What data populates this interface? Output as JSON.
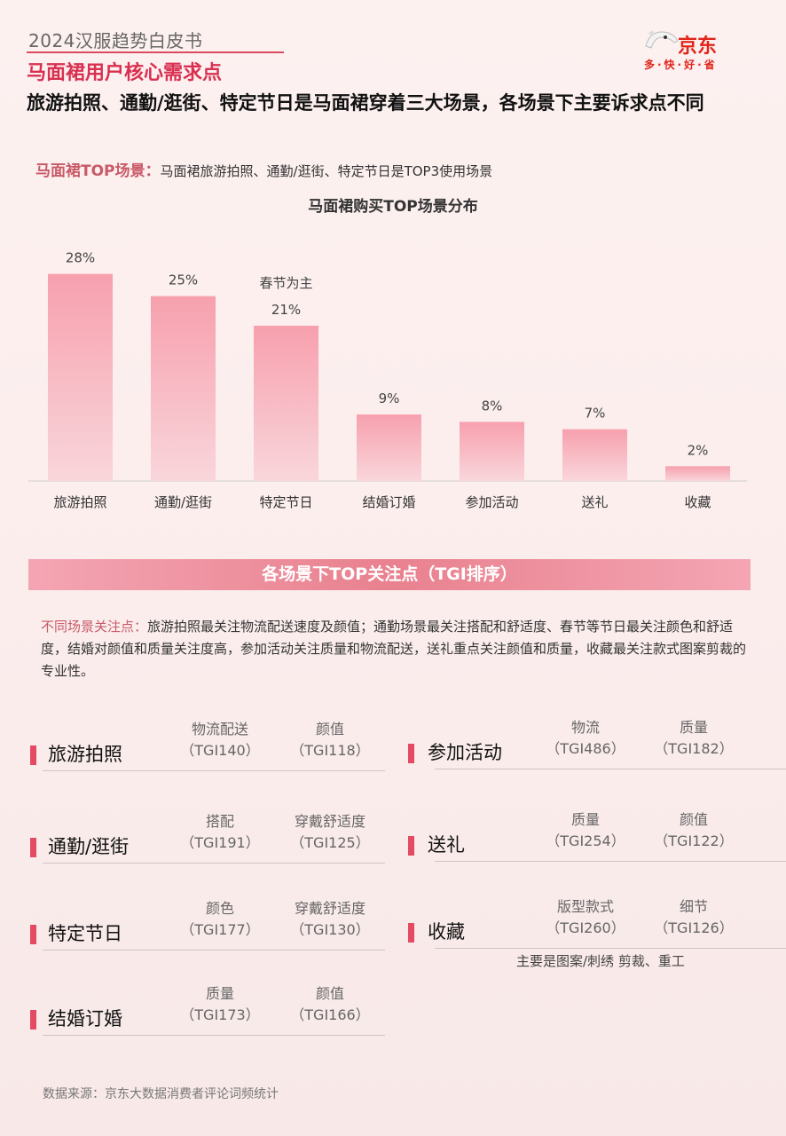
{
  "header": {
    "report_title": "2024汉服趋势白皮书",
    "section_title": "马面裙用户核心需求点",
    "subtitle": "旅游拍照、通勤/逛街、特定节日是马面裙穿着三大场景，各场景下主要诉求点不同",
    "logo": {
      "brand": "京东",
      "slogan": "多·快·好·省",
      "icon": "jd-dog-icon"
    }
  },
  "top_scene": {
    "label": "马面裙TOP场景：",
    "text": "马面裙旅游拍照、通勤/逛街、特定节日是TOP3使用场景"
  },
  "chart_data": {
    "type": "bar",
    "title": "马面裙购买TOP场景分布",
    "categories": [
      "旅游拍照",
      "通勤/逛街",
      "特定节日",
      "结婚订婚",
      "参加活动",
      "送礼",
      "收藏"
    ],
    "values": [
      28,
      25,
      21,
      9,
      8,
      7,
      2
    ],
    "value_labels": [
      "28%",
      "25%",
      "21%",
      "9%",
      "8%",
      "7%",
      "2%"
    ],
    "annotation": "春节为主",
    "ylim": [
      0,
      30
    ],
    "grid": false,
    "bar_color": "#f08c9c"
  },
  "focus": {
    "banner": "各场景下TOP关注点（TGI排序）",
    "desc_label": "不同场景关注点：",
    "desc_text": "旅游拍照最关注物流配送速度及颜值；通勤场景最关注搭配和舒适度、春节等节日最关注颜色和舒适度，结婚对颜值和质量关注度高，参加活动关注质量和物流配送，送礼重点关注颜值和质量，收藏最关注款式图案剪裁的专业性。",
    "scenes_left": [
      {
        "name": "旅游拍照",
        "tags": [
          {
            "name": "物流配送",
            "tgi": "（TGI140）"
          },
          {
            "name": "颜值",
            "tgi": "（TGI118）"
          }
        ]
      },
      {
        "name": "通勤/逛街",
        "tags": [
          {
            "name": "搭配",
            "tgi": "（TGI191）"
          },
          {
            "name": "穿戴舒适度",
            "tgi": "（TGI125）"
          }
        ]
      },
      {
        "name": "特定节日",
        "tags": [
          {
            "name": "颜色",
            "tgi": "（TGI177）"
          },
          {
            "name": "穿戴舒适度",
            "tgi": "（TGI130）"
          }
        ]
      },
      {
        "name": "结婚订婚",
        "tags": [
          {
            "name": "质量",
            "tgi": "（TGI173）"
          },
          {
            "name": "颜值",
            "tgi": "（TGI166）"
          }
        ]
      }
    ],
    "scenes_right": [
      {
        "name": "参加活动",
        "tags": [
          {
            "name": "物流",
            "tgi": "（TGI486）"
          },
          {
            "name": "质量",
            "tgi": "（TGI182）"
          }
        ]
      },
      {
        "name": "送礼",
        "tags": [
          {
            "name": "质量",
            "tgi": "（TGI254）"
          },
          {
            "name": "颜值",
            "tgi": "（TGI122）"
          }
        ]
      },
      {
        "name": "收藏",
        "tags": [
          {
            "name": "版型款式",
            "tgi": "（TGI260）"
          },
          {
            "name": "细节",
            "tgi": "（TGI126）"
          }
        ]
      }
    ],
    "collect_note": "主要是图案/刺绣    剪裁、重工"
  },
  "footer": {
    "source": "数据来源：京东大数据消费者评论词频统计"
  }
}
